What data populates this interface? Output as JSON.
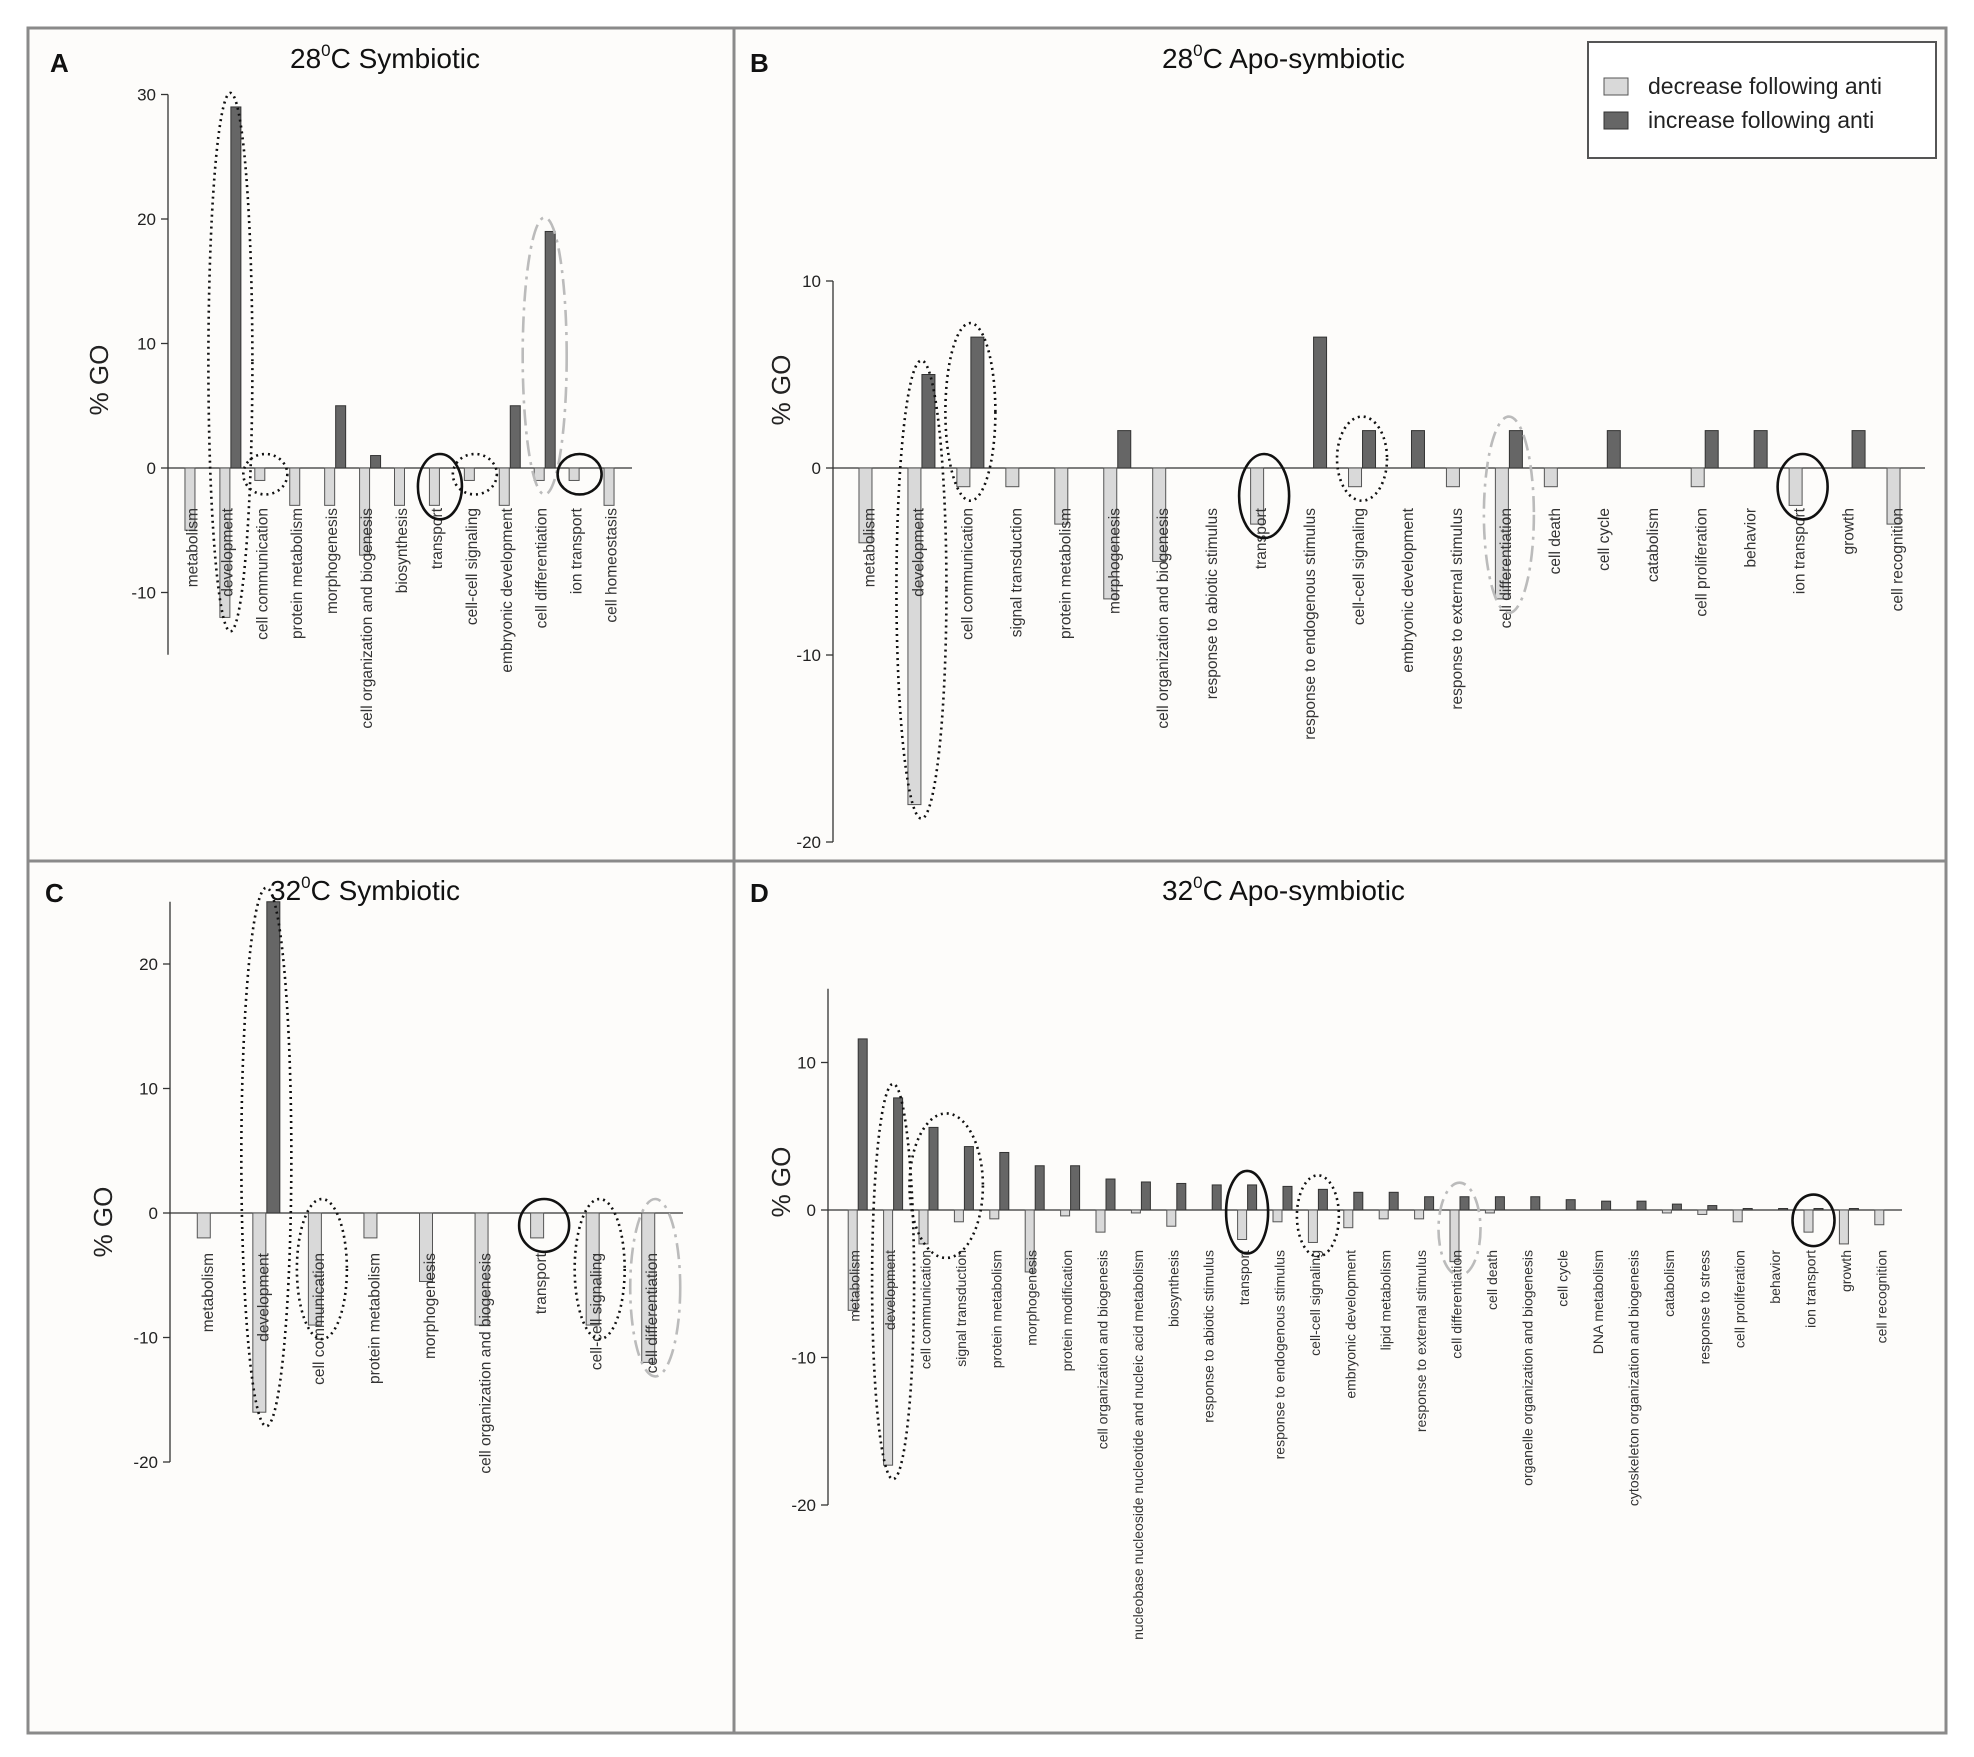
{
  "legend": {
    "decrease_label": "decrease following anti",
    "increase_label": "increase following anti",
    "decrease_color": "#d9d9d9",
    "increase_color": "#666666"
  },
  "chart_data": [
    {
      "panel": "A",
      "type": "bar",
      "title_main": "28",
      "title_sup": "0",
      "title_rest": "C Symbiotic",
      "ylabel": "% GO",
      "ylim": [
        -15,
        30
      ],
      "yticks": [
        -10,
        0,
        10,
        20,
        30
      ],
      "categories": [
        "metabolism",
        "development",
        "cell communication",
        "protein metabolism",
        "morphogenesis",
        "cell organization and biogenesis",
        "biosynthesis",
        "transport",
        "cell-cell signaling",
        "embryonic development",
        "cell differentiation",
        "ion transport",
        "cell homeostasis"
      ],
      "series": [
        {
          "name": "decrease following anti",
          "values": [
            -5,
            -12,
            -1,
            -3,
            -3,
            -7,
            -3,
            -3,
            -1,
            -3,
            -1,
            -1,
            -3
          ]
        },
        {
          "name": "increase following anti",
          "values": [
            0,
            29,
            0,
            0,
            5,
            1,
            0,
            0,
            0,
            5,
            19,
            0,
            0
          ]
        }
      ],
      "highlights": [
        {
          "category": "development",
          "style": "dotted",
          "color": "#111111"
        },
        {
          "category": "cell communication",
          "style": "dotted",
          "color": "#111111"
        },
        {
          "category": "transport",
          "style": "solid",
          "color": "#111111"
        },
        {
          "category": "cell-cell signaling",
          "style": "dotted",
          "color": "#111111"
        },
        {
          "category": "cell differentiation",
          "style": "dashdot",
          "color": "#bbbbbb"
        },
        {
          "category": "ion transport",
          "style": "solid",
          "color": "#111111"
        }
      ]
    },
    {
      "panel": "B",
      "type": "bar",
      "title_main": "28",
      "title_sup": "0",
      "title_rest": "C Apo-symbiotic",
      "ylabel": "% GO",
      "ylim": [
        -20,
        10
      ],
      "yticks": [
        -20,
        -10,
        0,
        10
      ],
      "categories": [
        "metabolism",
        "development",
        "cell communication",
        "signal transduction",
        "protein metabolism",
        "morphogenesis",
        "cell organization and biogenesis",
        "response to abiotic stimulus",
        "transport",
        "response to endogenous stimulus",
        "cell-cell signaling",
        "embryonic development",
        "response to external stimulus",
        "cell differentiation",
        "cell death",
        "cell cycle",
        "catabolism",
        "cell proliferation",
        "behavior",
        "ion transport",
        "growth",
        "cell recognition"
      ],
      "series": [
        {
          "name": "decrease following anti",
          "values": [
            -4,
            -18,
            -1,
            -1,
            -3,
            -7,
            -5,
            0,
            -3,
            0,
            -1,
            0,
            -1,
            -7,
            -1,
            0,
            0,
            -1,
            0,
            -2,
            0,
            -3
          ]
        },
        {
          "name": "increase following anti",
          "values": [
            0,
            5,
            7,
            0,
            0,
            2,
            0,
            0,
            0,
            7,
            2,
            2,
            0,
            2,
            0,
            2,
            0,
            2,
            2,
            0,
            2,
            0
          ]
        }
      ],
      "highlights": [
        {
          "category": "development",
          "style": "dotted",
          "color": "#111111"
        },
        {
          "category": "cell communication",
          "style": "dotted",
          "color": "#111111"
        },
        {
          "category": "transport",
          "style": "solid",
          "color": "#111111"
        },
        {
          "category": "cell-cell signaling",
          "style": "dotted",
          "color": "#111111"
        },
        {
          "category": "cell differentiation",
          "style": "dashdot",
          "color": "#bbbbbb"
        },
        {
          "category": "ion transport",
          "style": "solid",
          "color": "#111111"
        }
      ]
    },
    {
      "panel": "C",
      "type": "bar",
      "title_main": "32",
      "title_sup": "0",
      "title_rest": "C Symbiotic",
      "ylabel": "% GO",
      "ylim": [
        -20,
        25
      ],
      "yticks": [
        -20,
        -10,
        0,
        10,
        20
      ],
      "categories": [
        "metabolism",
        "development",
        "cell communication",
        "protein metabolism",
        "morphogenesis",
        "cell organization and biogenesis",
        "transport",
        "cell-cell signaling",
        "cell differentiation"
      ],
      "series": [
        {
          "name": "decrease following anti",
          "values": [
            -2,
            -16,
            -9,
            -2,
            -5.5,
            -9,
            -2,
            -9,
            -12
          ]
        },
        {
          "name": "increase following anti",
          "values": [
            0,
            25,
            0,
            0,
            0,
            0,
            0,
            0,
            0
          ]
        }
      ],
      "highlights": [
        {
          "category": "development",
          "style": "dotted",
          "color": "#111111"
        },
        {
          "category": "cell communication",
          "style": "dotted",
          "color": "#111111"
        },
        {
          "category": "transport",
          "style": "solid",
          "color": "#111111"
        },
        {
          "category": "cell-cell signaling",
          "style": "dotted",
          "color": "#111111"
        },
        {
          "category": "cell differentiation",
          "style": "dashdot",
          "color": "#bbbbbb"
        }
      ]
    },
    {
      "panel": "D",
      "type": "bar",
      "title_main": "32",
      "title_sup": "0",
      "title_rest": "C Apo-symbiotic",
      "ylabel": "% GO",
      "ylim": [
        -20,
        15
      ],
      "yticks": [
        -20,
        -10,
        0,
        10
      ],
      "categories": [
        "metabolism",
        "development",
        "cell communication",
        "signal transduction",
        "protein metabolism",
        "morphogenesis",
        "protein modification",
        "cell organization and biogenesis",
        "nucleobase nucleoside nucleotide and nucleic acid metabolism",
        "biosynthesis",
        "response to abiotic stimulus",
        "transport",
        "response to endogenous stimulus",
        "cell-cell signaling",
        "embryonic development",
        "lipid metabolism",
        "response to external stimulus",
        "cell differentiation",
        "cell death",
        "organelle organization and biogenesis",
        "cell cycle",
        "DNA metabolism",
        "cytoskeleton organization and biogenesis",
        "catabolism",
        "response to stress",
        "cell proliferation",
        "behavior",
        "ion transport",
        "growth",
        "cell recognition"
      ],
      "series": [
        {
          "name": "decrease following anti",
          "values": [
            -6.8,
            -17.3,
            -2.3,
            -0.8,
            -0.6,
            -4.2,
            -0.4,
            -1.5,
            -0.2,
            -1.1,
            0,
            -2,
            -0.8,
            -2.2,
            -1.2,
            -0.6,
            -0.6,
            -3.5,
            -0.2,
            0,
            0,
            0,
            0,
            -0.2,
            -0.3,
            -0.8,
            0,
            -1.5,
            -2.3,
            -1
          ]
        },
        {
          "name": "increase following anti",
          "values": [
            11.6,
            7.6,
            5.6,
            4.3,
            3.9,
            3,
            3,
            2.1,
            1.9,
            1.8,
            1.7,
            1.7,
            1.6,
            1.4,
            1.2,
            1.2,
            0.9,
            0.9,
            0.9,
            0.9,
            0.7,
            0.6,
            0.6,
            0.4,
            0.3,
            0.1,
            0.1,
            0.1,
            0.1,
            0
          ]
        }
      ],
      "highlights": [
        {
          "category": "development",
          "style": "dotted",
          "color": "#111111"
        },
        {
          "category": "cell communication",
          "style": "dotted",
          "color": "#111111",
          "span_to": "signal transduction"
        },
        {
          "category": "transport",
          "style": "solid",
          "color": "#111111"
        },
        {
          "category": "cell-cell signaling",
          "style": "dotted",
          "color": "#111111"
        },
        {
          "category": "cell differentiation",
          "style": "dashdot",
          "color": "#bbbbbb"
        },
        {
          "category": "ion transport",
          "style": "solid",
          "color": "#111111"
        }
      ]
    }
  ]
}
